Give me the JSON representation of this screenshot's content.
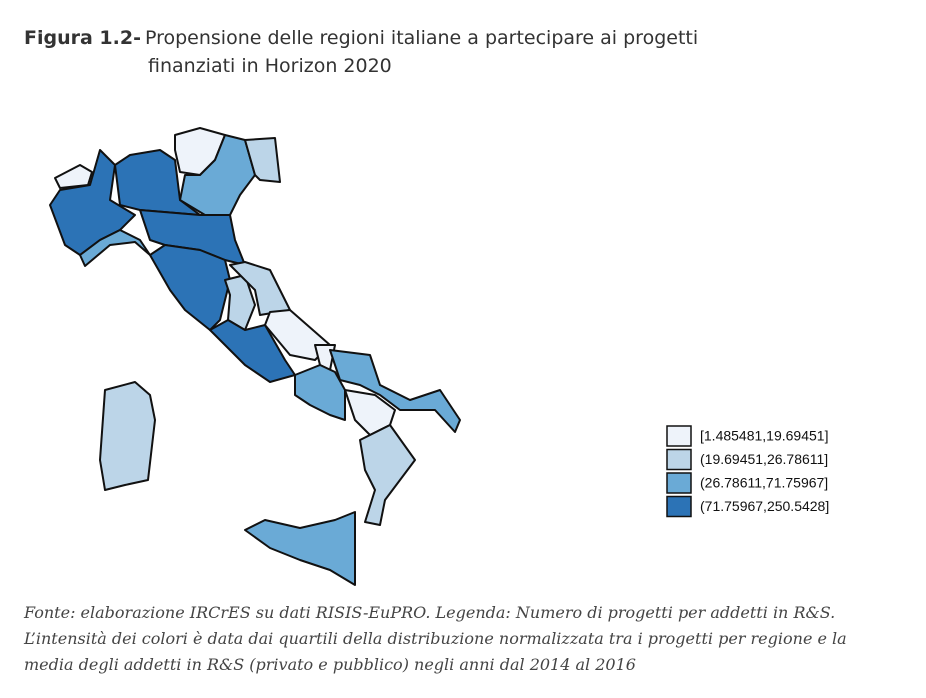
{
  "header": {
    "label": "Figura 1.2-",
    "title_lines": [
      "Propensione delle regioni italiane a partecipare ai progetti",
      "finanziati in Horizon 2020"
    ]
  },
  "legend": {
    "items": [
      {
        "label": "[1.485481,19.69451]",
        "color": "#eef3fa"
      },
      {
        "label": "(19.69451,26.78611]",
        "color": "#bcd5e8"
      },
      {
        "label": "(26.78611,71.75967]",
        "color": "#6aaad6"
      },
      {
        "label": "(71.75967,250.5428]",
        "color": "#2c73b6"
      }
    ]
  },
  "footnote": {
    "lines": [
      "Fonte: elaborazione IRCrES su dati RISIS-EuPRO. Legenda: Numero di progetti per addetti in R&S.",
      "L’intensità dei colori è data dai quartili della distribuzione normalizzata tra i progetti per regione e la",
      "media degli addetti in R&S (privato e pubblico) negli anni dal 2014 al 2016"
    ]
  }
}
